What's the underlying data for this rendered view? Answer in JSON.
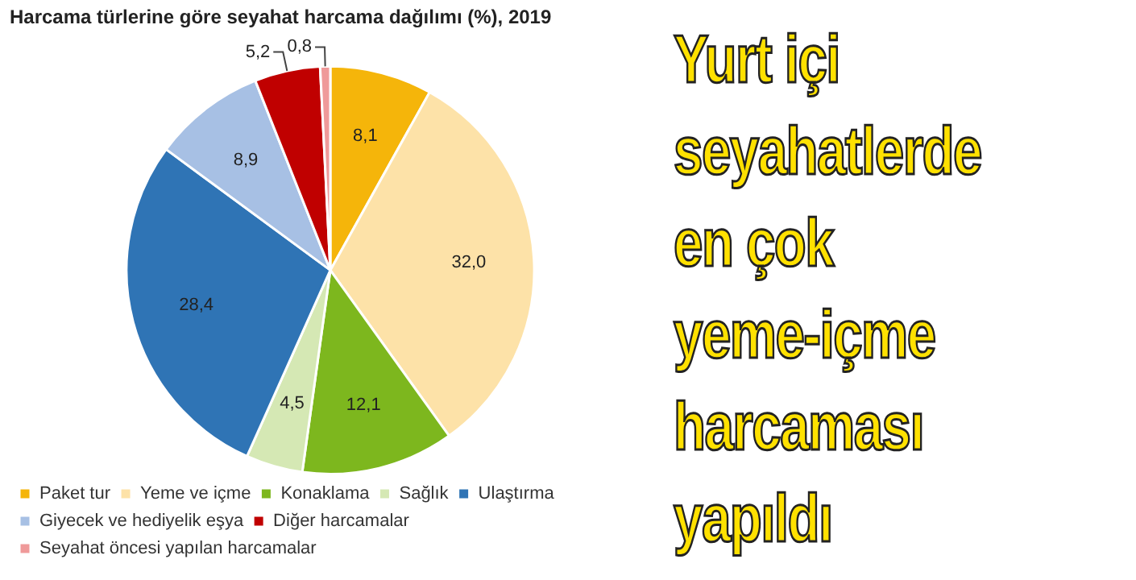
{
  "chart_data": {
    "type": "pie",
    "title": "Harcama türlerine göre seyahat harcama dağılımı (%), 2019",
    "categories": [
      "Paket tur",
      "Yeme ve içme",
      "Konaklama",
      "Sağlık",
      "Ulaştırma",
      "Giyecek ve hediyelik eşya",
      "Diğer harcamalar",
      "Seyahat öncesi yapılan harcamalar"
    ],
    "values": [
      8.1,
      32.0,
      12.1,
      4.5,
      28.4,
      8.9,
      5.2,
      0.8
    ],
    "colors": [
      "#f5b50a",
      "#fde2a8",
      "#7db71e",
      "#d5e8b4",
      "#2f74b5",
      "#a7c0e4",
      "#c00000",
      "#ef9a9a"
    ],
    "value_labels": [
      "8,1",
      "32,0",
      "12,1",
      "4,5",
      "28,4",
      "8,9",
      "5,2",
      "0,8"
    ],
    "legend": "bottom",
    "annotations": [
      "Yurt içi\nseyahatlerde\nen çok\nyeme-içme\nharcaması\nyapıldı"
    ]
  }
}
